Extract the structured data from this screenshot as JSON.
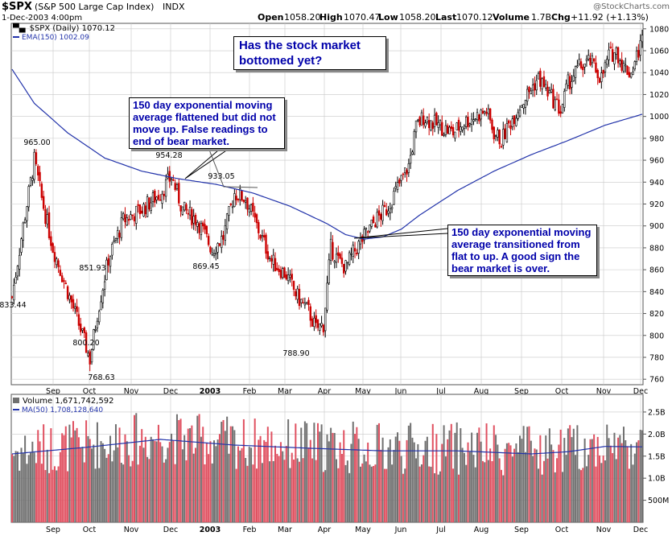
{
  "header": {
    "symbol": "$SPX",
    "name": "(S&P 500 Large Cap Index)",
    "exchange": "INDX",
    "copyright": "@StockCharts.com",
    "date": "1-Dec-2003 4:00pm",
    "open_label": "Open",
    "open": "1058.20",
    "high_label": "High",
    "high": "1070.47",
    "low_label": "Low",
    "low": "1058.20",
    "last_label": "Last",
    "last": "1070.12",
    "volume_label": "Volume",
    "volume": "1.7B",
    "chg_label": "Chg",
    "chg": "+11.92 (+1.13%)"
  },
  "legend": {
    "price": "$SPX (Daily) 1070.12",
    "ema": "EMA(150) 1002.09",
    "volume": "Volume 1,671,742,592",
    "ma": "MA(50) 1,708,128,640"
  },
  "annotations": {
    "title_box": "Has the stock market bottomed yet?",
    "box1": "150 day exponential moving average flattened but did not move up. False readings to end of bear market.",
    "box2": "150 day exponential moving average transitioned from flat to up. A good sign the bear market is over."
  },
  "colors": {
    "up": "#000000",
    "down": "#cc0000",
    "ema": "#2233aa",
    "grid": "#c8c8c8",
    "vol_up": "#707070",
    "vol_down": "#e05060"
  },
  "chart_data": [
    {
      "type": "candlestick",
      "title": "$SPX (Daily) 1070.12",
      "x_range": [
        "2002-08",
        "2003-12-01"
      ],
      "months": [
        "Sep",
        "Oct",
        "Nov",
        "Dec",
        "2003",
        "Feb",
        "Mar",
        "Apr",
        "May",
        "Jun",
        "Jul",
        "Aug",
        "Sep",
        "Oct",
        "Nov",
        "Dec"
      ],
      "y_ticks": [
        760,
        780,
        800,
        820,
        840,
        860,
        880,
        900,
        920,
        940,
        960,
        980,
        1000,
        1020,
        1040,
        1060,
        1080
      ],
      "ylim": [
        755,
        1085
      ],
      "labels": [
        {
          "text": "965.00",
          "value": 965.0
        },
        {
          "text": "954.28",
          "value": 954.28
        },
        {
          "text": "933.05",
          "value": 933.05
        },
        {
          "text": "851.93",
          "value": 851.93
        },
        {
          "text": "869.45",
          "value": 869.45
        },
        {
          "text": "833.44",
          "value": 833.44
        },
        {
          "text": "800.20",
          "value": 800.2
        },
        {
          "text": "768.63",
          "value": 768.63
        },
        {
          "text": "788.90",
          "value": 788.9
        }
      ],
      "close_anchors": [
        [
          0,
          835
        ],
        [
          6,
          900
        ],
        [
          12,
          960
        ],
        [
          16,
          925
        ],
        [
          22,
          880
        ],
        [
          30,
          840
        ],
        [
          38,
          800
        ],
        [
          42,
          778
        ],
        [
          46,
          820
        ],
        [
          52,
          870
        ],
        [
          60,
          905
        ],
        [
          70,
          915
        ],
        [
          80,
          930
        ],
        [
          86,
          945
        ],
        [
          92,
          915
        ],
        [
          100,
          905
        ],
        [
          108,
          878
        ],
        [
          114,
          890
        ],
        [
          120,
          930
        ],
        [
          126,
          925
        ],
        [
          132,
          900
        ],
        [
          140,
          868
        ],
        [
          148,
          855
        ],
        [
          154,
          835
        ],
        [
          160,
          822
        ],
        [
          164,
          806
        ],
        [
          168,
          810
        ],
        [
          172,
          880
        ],
        [
          176,
          868
        ],
        [
          180,
          862
        ],
        [
          184,
          875
        ],
        [
          190,
          890
        ],
        [
          196,
          905
        ],
        [
          202,
          915
        ],
        [
          208,
          935
        ],
        [
          214,
          955
        ],
        [
          218,
          990
        ],
        [
          222,
          1000
        ],
        [
          226,
          995
        ],
        [
          232,
          990
        ],
        [
          238,
          985
        ],
        [
          244,
          995
        ],
        [
          250,
          1000
        ],
        [
          256,
          1005
        ],
        [
          260,
          985
        ],
        [
          264,
          978
        ],
        [
          268,
          992
        ],
        [
          274,
          1010
        ],
        [
          280,
          1025
        ],
        [
          284,
          1035
        ],
        [
          288,
          1025
        ],
        [
          292,
          1015
        ],
        [
          296,
          1005
        ],
        [
          300,
          1030
        ],
        [
          306,
          1045
        ],
        [
          312,
          1050
        ],
        [
          318,
          1035
        ],
        [
          322,
          1055
        ],
        [
          326,
          1060
        ],
        [
          330,
          1045
        ],
        [
          334,
          1040
        ],
        [
          338,
          1060
        ],
        [
          340,
          1070
        ]
      ],
      "ema150_anchors": [
        [
          0,
          1043
        ],
        [
          12,
          1012
        ],
        [
          30,
          985
        ],
        [
          50,
          962
        ],
        [
          70,
          950
        ],
        [
          90,
          943
        ],
        [
          110,
          938
        ],
        [
          130,
          930
        ],
        [
          150,
          918
        ],
        [
          170,
          902
        ],
        [
          180,
          892
        ],
        [
          190,
          888
        ],
        [
          200,
          890
        ],
        [
          210,
          897
        ],
        [
          220,
          910
        ],
        [
          240,
          932
        ],
        [
          260,
          950
        ],
        [
          280,
          965
        ],
        [
          300,
          978
        ],
        [
          320,
          992
        ],
        [
          340,
          1002
        ]
      ]
    },
    {
      "type": "bar",
      "title": "Volume 1,671,742,592",
      "y_ticks": [
        "500M",
        "1.0B",
        "1.5B",
        "2.0B",
        "2.5B"
      ],
      "y_values": [
        0.5,
        1.0,
        1.5,
        2.0,
        2.5
      ],
      "ylim": [
        0,
        2.9
      ],
      "ma50_anchors": [
        [
          0,
          1.55
        ],
        [
          40,
          1.7
        ],
        [
          80,
          1.88
        ],
        [
          120,
          1.75
        ],
        [
          160,
          1.68
        ],
        [
          200,
          1.62
        ],
        [
          240,
          1.62
        ],
        [
          280,
          1.55
        ],
        [
          300,
          1.6
        ],
        [
          320,
          1.72
        ],
        [
          340,
          1.71
        ]
      ]
    }
  ]
}
